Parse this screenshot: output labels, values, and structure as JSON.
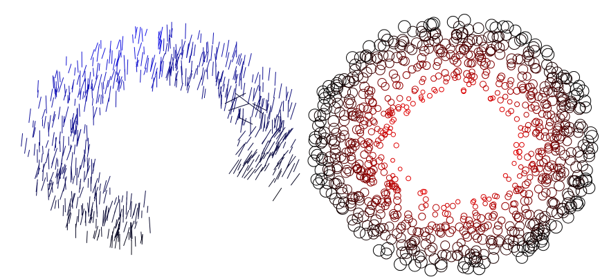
{
  "panels": [
    {
      "id": "left-panel",
      "kind": "oriented-line-segments",
      "colors": {
        "start": "#1414e6",
        "end": "#0a0a14"
      }
    },
    {
      "id": "right-panel",
      "kind": "ring-of-circles",
      "colors": {
        "inner": "#e10000",
        "outer": "#000000"
      }
    }
  ],
  "background_color": "#ffffff"
}
